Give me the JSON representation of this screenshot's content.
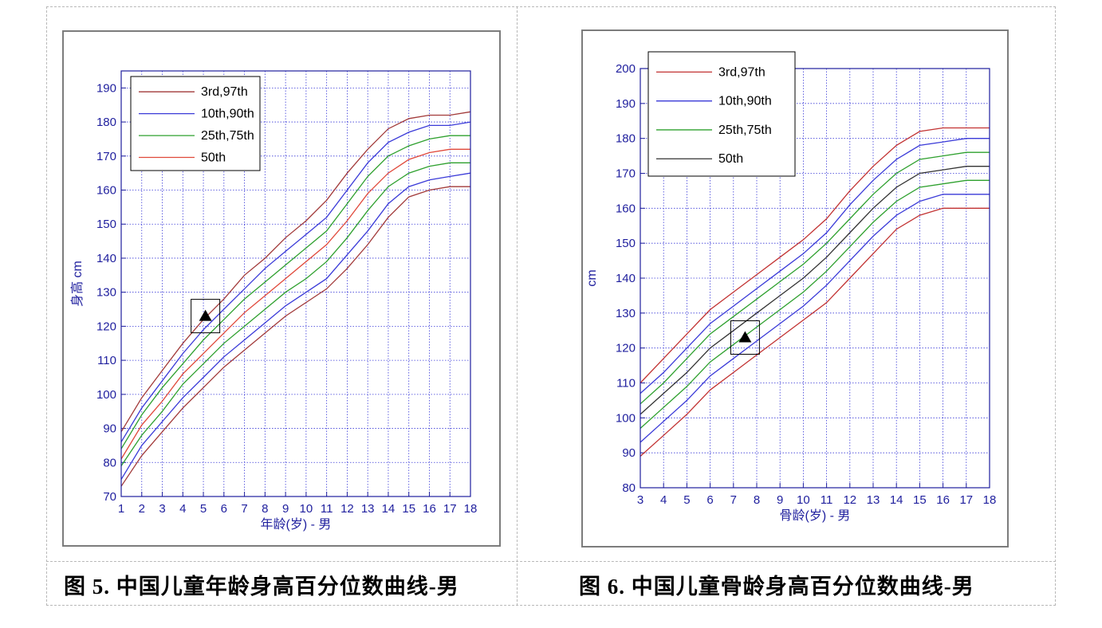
{
  "figures": [
    {
      "caption": "图 5. 中国儿童年龄身高百分位数曲线-男",
      "chart_data": {
        "type": "line",
        "xlabel": "年龄(岁) - 男",
        "ylabel": "身高 cm",
        "xlim": [
          1,
          18
        ],
        "ylim": [
          70,
          195
        ],
        "x_ticks": [
          1,
          2,
          3,
          4,
          5,
          6,
          7,
          8,
          9,
          10,
          11,
          12,
          13,
          14,
          15,
          16,
          17,
          18
        ],
        "y_ticks": [
          70,
          80,
          90,
          100,
          110,
          120,
          130,
          140,
          150,
          160,
          170,
          180,
          190
        ],
        "grid": true,
        "legend_position": "top-left",
        "legend": [
          {
            "label": "3rd,97th",
            "color": "#a23a3a"
          },
          {
            "label": "10th,90th",
            "color": "#3a3ad8"
          },
          {
            "label": "25th,75th",
            "color": "#2ea02e"
          },
          {
            "label": "50th",
            "color": "#e0483a"
          }
        ],
        "x": [
          1,
          2,
          3,
          4,
          5,
          6,
          7,
          8,
          9,
          10,
          11,
          12,
          13,
          14,
          15,
          16,
          17,
          18
        ],
        "series": [
          {
            "name": "3rd",
            "color": "#a23a3a",
            "values": [
              73,
              82,
              89,
              96,
              102,
              108,
              113,
              118,
              123,
              127,
              131,
              137,
              144,
              152,
              158,
              160,
              161,
              161
            ]
          },
          {
            "name": "10th",
            "color": "#3a3ad8",
            "values": [
              75,
              85,
              92,
              99,
              105,
              111,
              116,
              121,
              126,
              130,
              134,
              141,
              148,
              156,
              161,
              163,
              164,
              165
            ]
          },
          {
            "name": "25th",
            "color": "#2ea02e",
            "values": [
              79,
              88,
              95,
              103,
              109,
              115,
              120,
              125,
              130,
              134,
              139,
              146,
              154,
              161,
              165,
              167,
              168,
              168
            ]
          },
          {
            "name": "50th",
            "color": "#e0483a",
            "values": [
              81,
              91,
              98,
              106,
              112,
              118,
              124,
              129,
              134,
              139,
              144,
              151,
              159,
              165,
              169,
              171,
              172,
              172
            ]
          },
          {
            "name": "75th",
            "color": "#2ea02e",
            "values": [
              84,
              94,
              102,
              109,
              116,
              122,
              128,
              133,
              138,
              143,
              148,
              156,
              164,
              170,
              173,
              175,
              176,
              176
            ]
          },
          {
            "name": "90th",
            "color": "#3a3ad8",
            "values": [
              86,
              96,
              104,
              112,
              119,
              125,
              131,
              137,
              142,
              147,
              152,
              160,
              168,
              174,
              177,
              179,
              179,
              180
            ]
          },
          {
            "name": "97th",
            "color": "#a23a3a",
            "values": [
              89,
              99,
              107,
              115,
              122,
              128,
              135,
              140,
              146,
              151,
              157,
              165,
              172,
              178,
              181,
              182,
              182,
              183
            ]
          }
        ],
        "marker": {
          "x": 5.1,
          "y": 123,
          "shape": "triangle"
        }
      }
    },
    {
      "caption": "图 6. 中国儿童骨龄身高百分位数曲线-男",
      "chart_data": {
        "type": "line",
        "xlabel": "骨龄(岁) - 男",
        "ylabel": "cm",
        "xlim": [
          3,
          18
        ],
        "ylim": [
          80,
          200
        ],
        "x_ticks": [
          3,
          4,
          5,
          6,
          7,
          8,
          9,
          10,
          11,
          12,
          13,
          14,
          15,
          16,
          17,
          18
        ],
        "y_ticks": [
          80,
          90,
          100,
          110,
          120,
          130,
          140,
          150,
          160,
          170,
          180,
          190,
          200
        ],
        "grid": true,
        "legend_position": "top-left",
        "legend": [
          {
            "label": "3rd,97th",
            "color": "#c23232"
          },
          {
            "label": "10th,90th",
            "color": "#3a3ad8"
          },
          {
            "label": "25th,75th",
            "color": "#2ea02e"
          },
          {
            "label": "50th",
            "color": "#333333"
          }
        ],
        "x": [
          3,
          4,
          5,
          6,
          7,
          8,
          9,
          10,
          11,
          12,
          13,
          14,
          15,
          16,
          17,
          18
        ],
        "series": [
          {
            "name": "3rd",
            "color": "#c23232",
            "values": [
              89,
              95,
              101,
              108,
              113,
              118,
              123,
              128,
              133,
              140,
              147,
              154,
              158,
              160,
              160,
              160
            ]
          },
          {
            "name": "10th",
            "color": "#3a3ad8",
            "values": [
              93,
              99,
              105,
              112,
              117,
              122,
              127,
              132,
              138,
              145,
              152,
              158,
              162,
              164,
              164,
              164
            ]
          },
          {
            "name": "25th",
            "color": "#2ea02e",
            "values": [
              97,
              103,
              109,
              116,
              121,
              126,
              131,
              136,
              142,
              149,
              156,
              162,
              166,
              167,
              168,
              168
            ]
          },
          {
            "name": "50th",
            "color": "#333333",
            "values": [
              101,
              107,
              113,
              120,
              125,
              130,
              135,
              140,
              146,
              153,
              160,
              166,
              170,
              171,
              172,
              172
            ]
          },
          {
            "name": "75th",
            "color": "#2ea02e",
            "values": [
              104,
              110,
              117,
              124,
              129,
              134,
              139,
              144,
              150,
              157,
              164,
              170,
              174,
              175,
              176,
              176
            ]
          },
          {
            "name": "90th",
            "color": "#3a3ad8",
            "values": [
              107,
              113,
              120,
              127,
              132,
              137,
              142,
              147,
              153,
              161,
              168,
              174,
              178,
              179,
              180,
              180
            ]
          },
          {
            "name": "97th",
            "color": "#c23232",
            "values": [
              110,
              117,
              124,
              131,
              136,
              141,
              146,
              151,
              157,
              165,
              172,
              178,
              182,
              183,
              183,
              183
            ]
          }
        ],
        "marker": {
          "x": 7.5,
          "y": 123,
          "shape": "triangle"
        }
      }
    }
  ]
}
